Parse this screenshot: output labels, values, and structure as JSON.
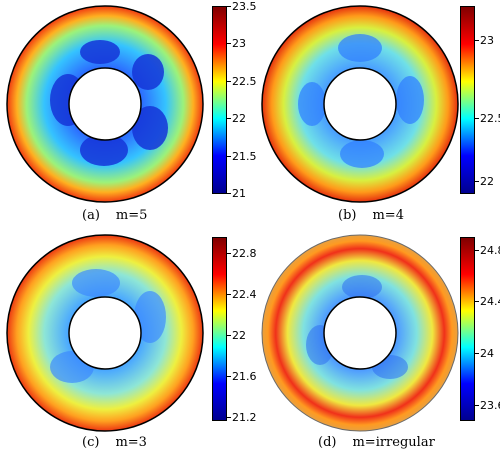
{
  "figure": {
    "panels": [
      {
        "id": "a",
        "caption_label": "(a)",
        "caption_text": "m=5",
        "colorbar": {
          "min": 21,
          "max": 23.5,
          "ticks": [
            "23.5",
            "23",
            "22.5",
            "22",
            "21.5",
            "21"
          ]
        },
        "lobes": 5
      },
      {
        "id": "b",
        "caption_label": "(b)",
        "caption_text": "m=4",
        "colorbar": {
          "min": 21.8,
          "max": 23.2,
          "ticks": [
            "23",
            "22.5",
            "22"
          ]
        },
        "lobes": 4
      },
      {
        "id": "c",
        "caption_label": "(c)",
        "caption_text": "m=3",
        "colorbar": {
          "min": 21.1,
          "max": 22.9,
          "ticks": [
            "22.8",
            "22.4",
            "22",
            "21.6",
            "21.2"
          ]
        },
        "lobes": 3
      },
      {
        "id": "d",
        "caption_label": "(d)",
        "caption_text": "m=irregular",
        "colorbar": {
          "min": 23.5,
          "max": 24.9,
          "ticks": [
            "24.8",
            "24.4",
            "24",
            "23.6"
          ]
        },
        "lobes": 0
      }
    ],
    "colormap": "jet"
  }
}
